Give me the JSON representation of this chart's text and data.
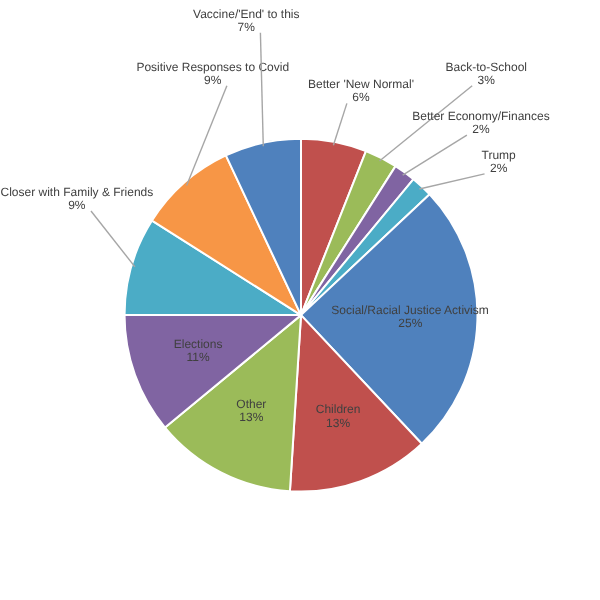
{
  "chart_data": {
    "type": "pie",
    "categories": [
      "Better 'New Normal'",
      "Back-to-School",
      "Better Economy/Finances",
      "Trump",
      "Social/Racial Justice Activism",
      "Children",
      "Other",
      "Elections",
      "Closer with Family & Friends",
      "Positive Responses to Covid",
      "Vaccine/'End' to this"
    ],
    "values": [
      6,
      3,
      2,
      2,
      25,
      13,
      13,
      11,
      9,
      9,
      7
    ],
    "value_labels": [
      "6%",
      "3%",
      "2%",
      "2%",
      "25%",
      "13%",
      "13%",
      "11%",
      "9%",
      "9%",
      "7%"
    ],
    "colors": [
      "#c0504d",
      "#9bbb59",
      "#8064a2",
      "#4bacc6",
      "#4f81bd",
      "#c0504d",
      "#9bbb59",
      "#8064a2",
      "#4bacc6",
      "#f79646",
      "#4f81bd"
    ]
  }
}
